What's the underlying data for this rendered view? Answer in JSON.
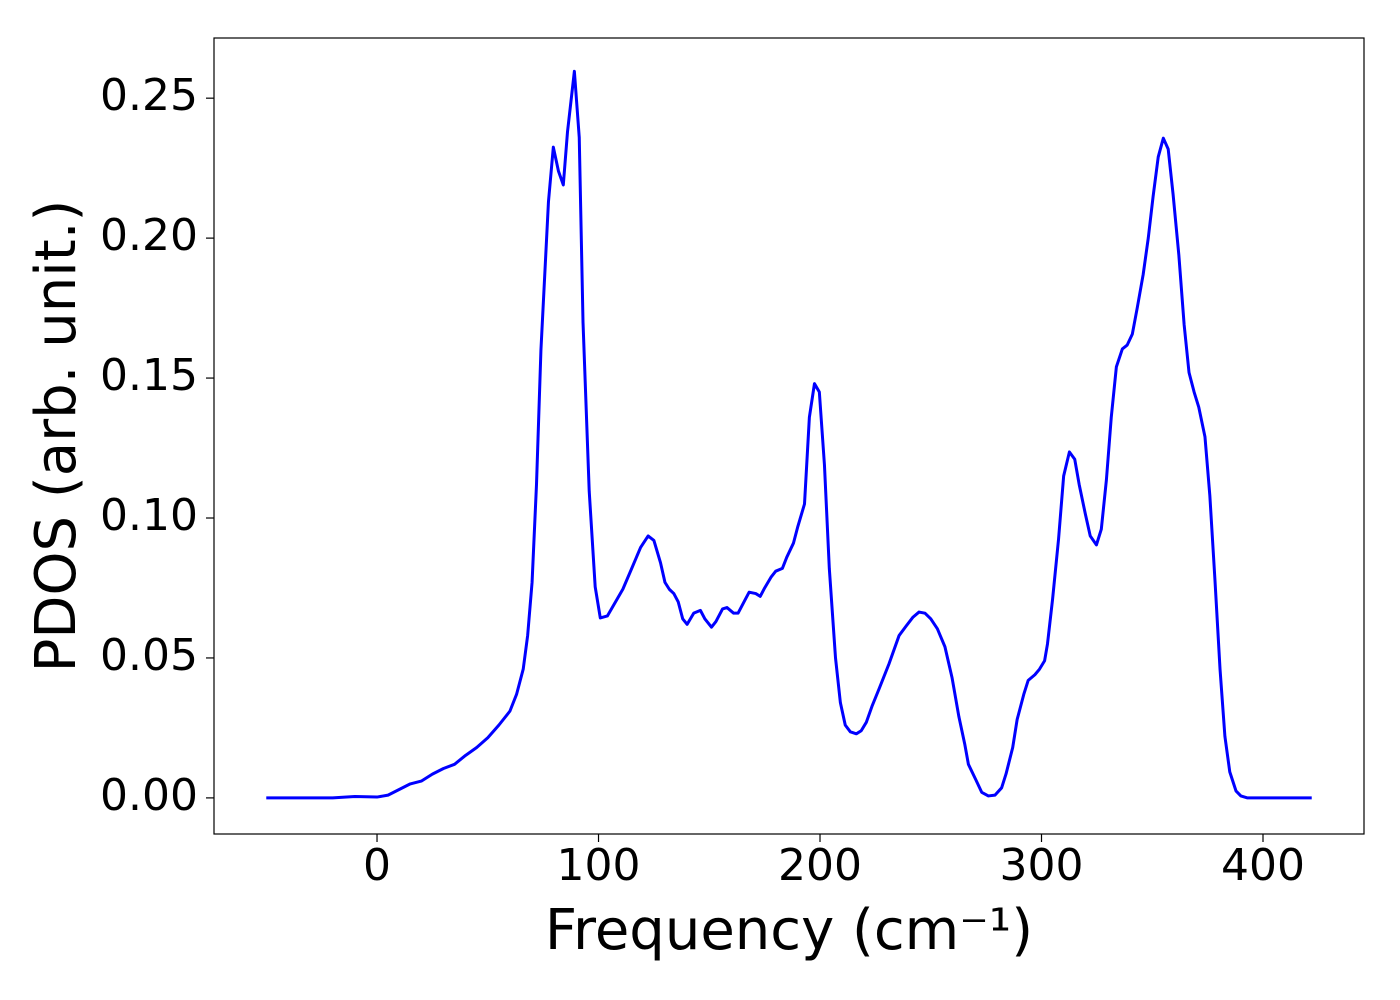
{
  "chart_data": {
    "type": "line",
    "x_label": "Frequency (cm⁻¹)",
    "y_label": "PDOS (arb. unit.)",
    "xlim": [
      -73.6,
      445.6
    ],
    "ylim": [
      -0.0129,
      0.2715
    ],
    "xticks": [
      0,
      100,
      200,
      300,
      400
    ],
    "yticks": [
      {
        "value": 0,
        "label": "0.00"
      },
      {
        "value": 0.05,
        "label": "0.05"
      },
      {
        "value": 0.1,
        "label": "0.10"
      },
      {
        "value": 0.15,
        "label": "0.15"
      },
      {
        "value": 0.2,
        "label": "0.20"
      },
      {
        "value": 0.25,
        "label": "0.25"
      }
    ],
    "grid": false,
    "x": [
      -50,
      -20,
      -10,
      0,
      5,
      10,
      15,
      20,
      25,
      30,
      35,
      40,
      45,
      50,
      55,
      60,
      63,
      66,
      68,
      70,
      72,
      74,
      77.4,
      79.6,
      81.9,
      84.1,
      86,
      89.1,
      91.3,
      93,
      95.8,
      98.5,
      100.8,
      104,
      111,
      115,
      119,
      122.4,
      125,
      128,
      130,
      132,
      134,
      136,
      138,
      140,
      143,
      146,
      148,
      151,
      153,
      156,
      158,
      161,
      163,
      166,
      168,
      171,
      173,
      175,
      178,
      180,
      183,
      185,
      188,
      190,
      193,
      195.2,
      197.5,
      199.7,
      202,
      204.2,
      207,
      209.2,
      211.4,
      213.7,
      216.4,
      218.6,
      220.9,
      223.6,
      226.7,
      231.2,
      235.7,
      238.9,
      242,
      244.7,
      247.4,
      250,
      253,
      256.4,
      259.6,
      262.7,
      265.4,
      267,
      270.4,
      273,
      276,
      279,
      282,
      284,
      287,
      289,
      292,
      294,
      297,
      299.1,
      301.4,
      302.7,
      305,
      307.7,
      310,
      312.6,
      315,
      317,
      319.8,
      322,
      324.8,
      327,
      329.3,
      331.5,
      333.8,
      336.5,
      338.7,
      341,
      343.2,
      345.9,
      348.2,
      350.4,
      352.7,
      355,
      357.2,
      359.4,
      362,
      364.4,
      366.6,
      368.9,
      371,
      373.8,
      376,
      378.3,
      380.6,
      382.8,
      385,
      387.8,
      390,
      393,
      422
    ],
    "series": [
      {
        "name": "PDOS",
        "color": "#0000ff",
        "values": [
          0,
          0,
          0.0005,
          0.0003,
          0.001,
          0.003,
          0.005,
          0.006,
          0.0085,
          0.0105,
          0.012,
          0.0152,
          0.018,
          0.0215,
          0.026,
          0.031,
          0.037,
          0.046,
          0.058,
          0.077,
          0.112,
          0.16,
          0.213,
          0.2325,
          0.224,
          0.219,
          0.238,
          0.2596,
          0.236,
          0.17,
          0.1096,
          0.0754,
          0.0643,
          0.065,
          0.0746,
          0.082,
          0.0895,
          0.0936,
          0.092,
          0.084,
          0.077,
          0.0745,
          0.073,
          0.07,
          0.064,
          0.062,
          0.066,
          0.067,
          0.064,
          0.061,
          0.063,
          0.0675,
          0.068,
          0.066,
          0.066,
          0.0705,
          0.0735,
          0.073,
          0.072,
          0.075,
          0.079,
          0.081,
          0.082,
          0.086,
          0.091,
          0.097,
          0.105,
          0.136,
          0.148,
          0.145,
          0.119,
          0.082,
          0.05,
          0.034,
          0.026,
          0.0236,
          0.0229,
          0.024,
          0.027,
          0.033,
          0.039,
          0.048,
          0.058,
          0.0614,
          0.0646,
          0.0664,
          0.066,
          0.064,
          0.0604,
          0.054,
          0.043,
          0.029,
          0.019,
          0.012,
          0.0064,
          0.002,
          0.0007,
          0.001,
          0.0036,
          0.0086,
          0.018,
          0.028,
          0.037,
          0.042,
          0.044,
          0.046,
          0.049,
          0.055,
          0.071,
          0.0925,
          0.115,
          0.1236,
          0.121,
          0.112,
          0.1014,
          0.0936,
          0.0904,
          0.096,
          0.1136,
          0.136,
          0.154,
          0.1604,
          0.1618,
          0.1657,
          0.175,
          0.187,
          0.2,
          0.215,
          0.229,
          0.2357,
          0.2318,
          0.2157,
          0.194,
          0.169,
          0.152,
          0.145,
          0.1396,
          0.129,
          0.108,
          0.078,
          0.046,
          0.022,
          0.0093,
          0.0025,
          0.0007,
          0,
          0
        ]
      }
    ]
  }
}
